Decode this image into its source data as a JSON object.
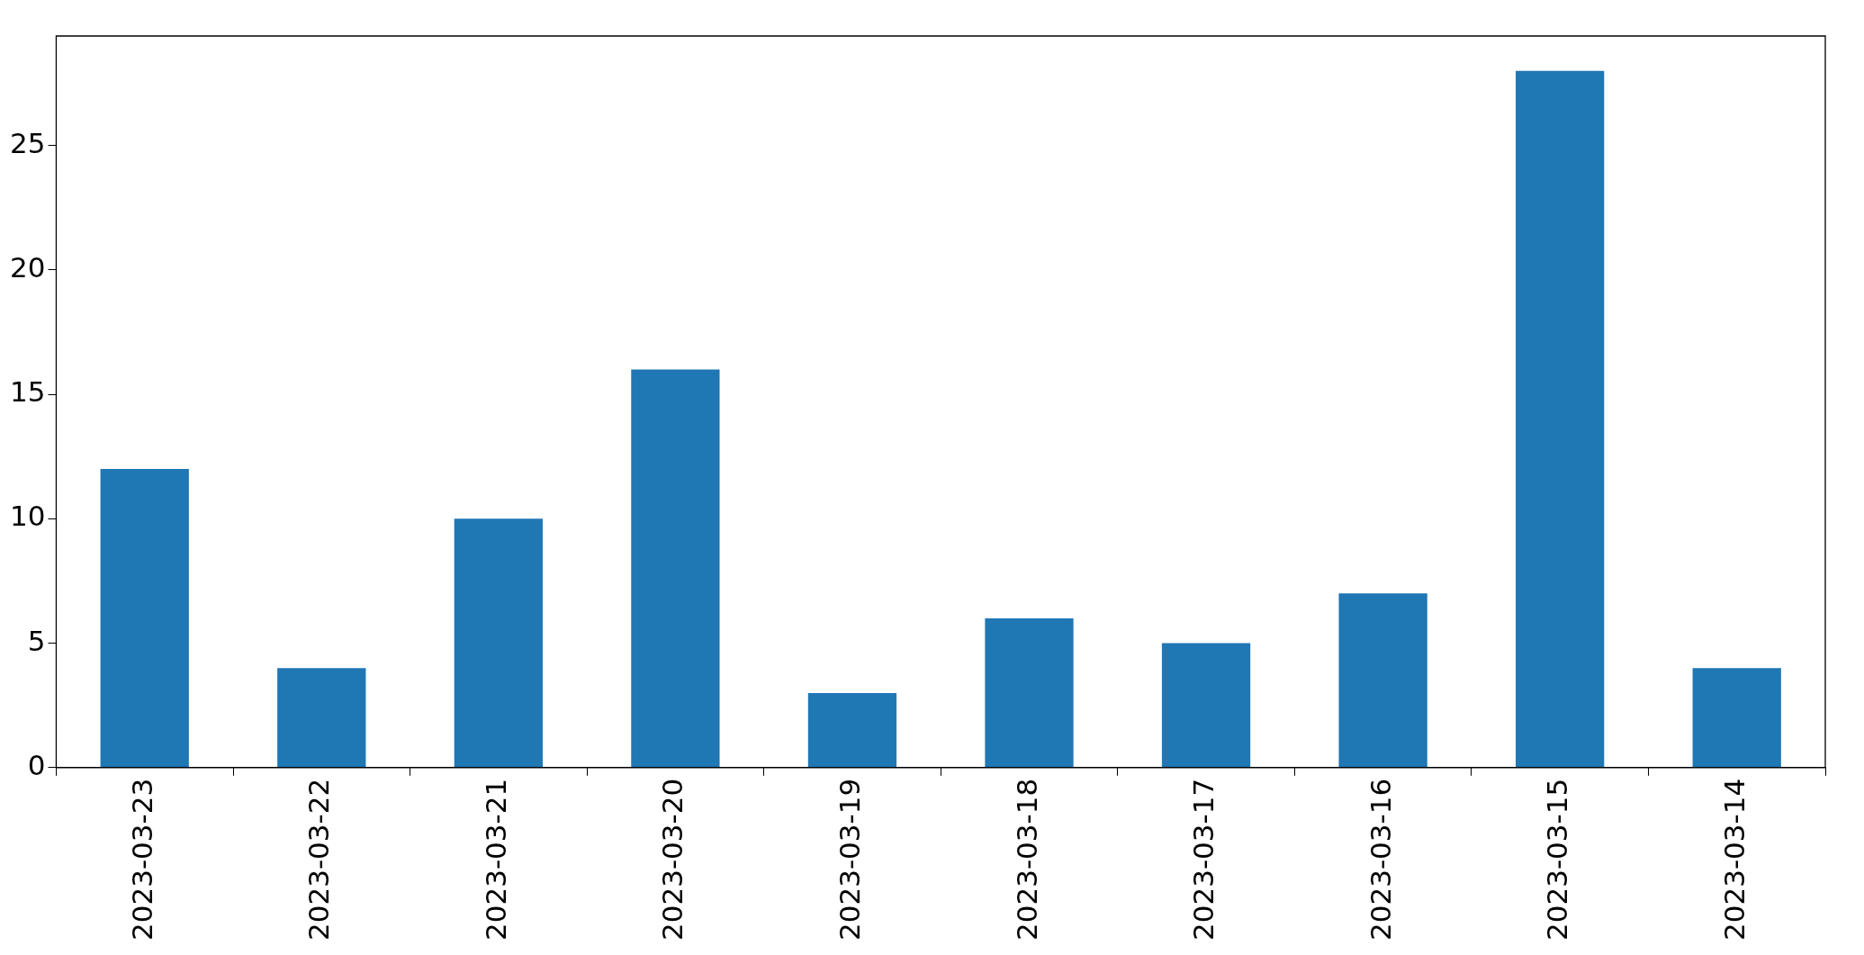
{
  "chart_data": {
    "type": "bar",
    "categories": [
      "2023-03-23",
      "2023-03-22",
      "2023-03-21",
      "2023-03-20",
      "2023-03-19",
      "2023-03-18",
      "2023-03-17",
      "2023-03-16",
      "2023-03-15",
      "2023-03-14"
    ],
    "values": [
      12,
      4,
      10,
      16,
      3,
      6,
      5,
      7,
      28,
      4
    ],
    "color": "#1f77b4",
    "ylim": [
      0,
      29.4
    ],
    "yticks": [
      0,
      5,
      10,
      15,
      20,
      25
    ],
    "grid": false,
    "legend": false
  }
}
